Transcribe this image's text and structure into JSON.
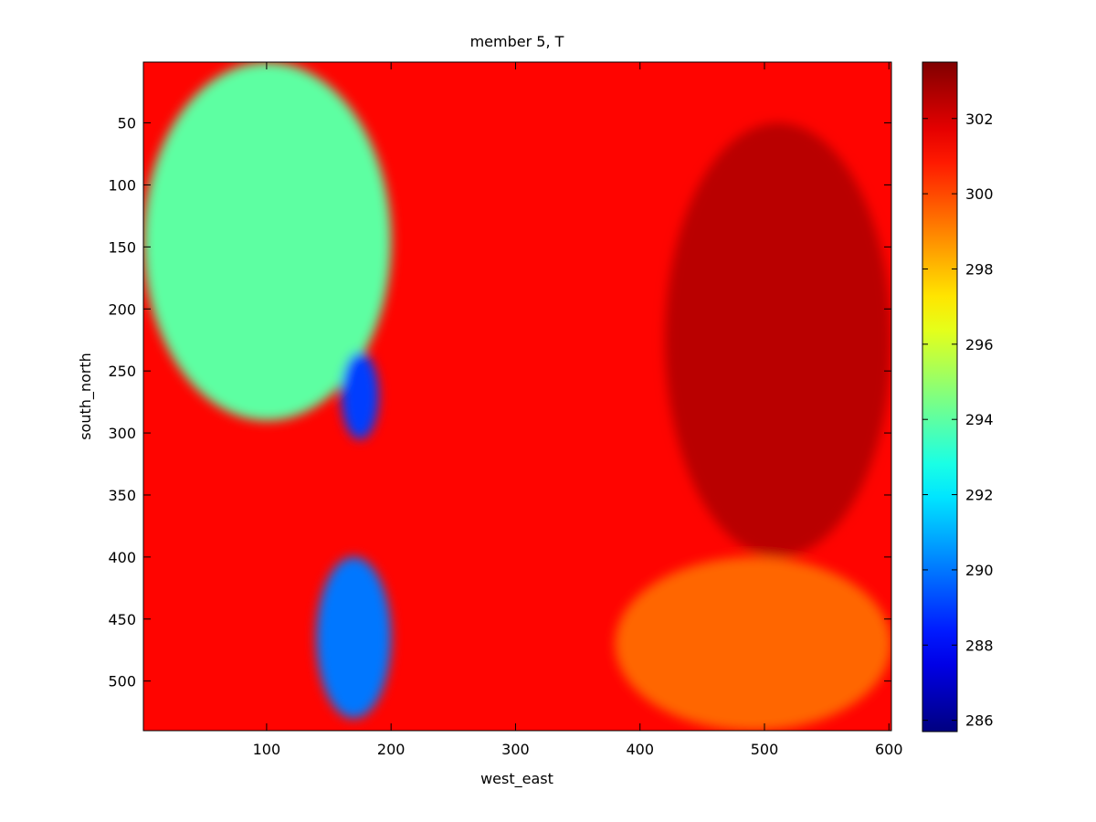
{
  "chart_data": {
    "type": "heatmap",
    "title": "member 5, T",
    "xlabel": "west_east",
    "ylabel": "south_north",
    "x_range": [
      1,
      602
    ],
    "y_range": [
      1,
      540
    ],
    "y_axis_direction": "top-to-bottom",
    "x_ticks": [
      100,
      200,
      300,
      400,
      500,
      600
    ],
    "y_ticks": [
      50,
      100,
      150,
      200,
      250,
      300,
      350,
      400,
      450,
      500
    ],
    "colorbar": {
      "colormap": "jet",
      "range": [
        285.7,
        303.5
      ],
      "ticks": [
        286,
        288,
        290,
        292,
        294,
        296,
        298,
        300,
        302
      ]
    },
    "field_regions": [
      {
        "description": "cool air mass, upper-left",
        "x": [
          1,
          200
        ],
        "y": [
          1,
          290
        ],
        "value": 294
      },
      {
        "description": "cold cell",
        "x": [
          160,
          190
        ],
        "y": [
          235,
          305
        ],
        "value": 289
      },
      {
        "description": "cold cell",
        "x": [
          140,
          200
        ],
        "y": [
          400,
          530
        ],
        "value": 290
      },
      {
        "description": "warm region, east",
        "x": [
          420,
          602
        ],
        "y": [
          50,
          400
        ],
        "value": 302.5
      },
      {
        "description": "moderate region, south-east",
        "x": [
          380,
          602
        ],
        "y": [
          400,
          540
        ],
        "value": 299.5
      }
    ],
    "background_value": 301.2,
    "grid": false,
    "legend": "none"
  }
}
